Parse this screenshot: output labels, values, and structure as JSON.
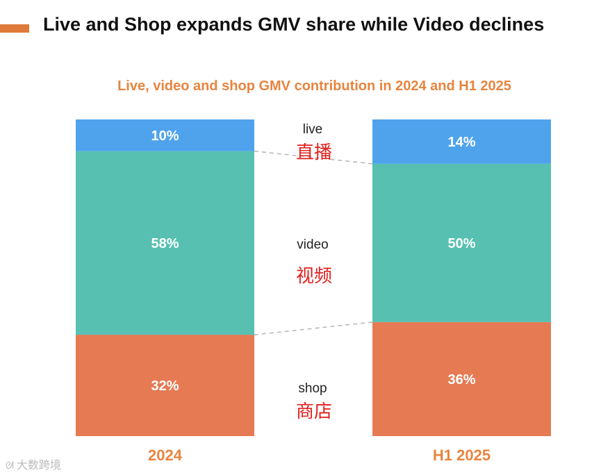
{
  "header": {
    "headline": "Live and Shop expands GMV share while Video declines",
    "accent_color": "#e07a3a"
  },
  "chart_data": {
    "type": "bar",
    "stacked": true,
    "normalized": true,
    "title": "Live, video and shop GMV contribution in 2024 and H1 2025",
    "categories": [
      "2024",
      "H1 2025"
    ],
    "series": [
      {
        "name": "shop",
        "name_zh": "商店",
        "color": "#e57a53",
        "values": [
          32,
          36
        ],
        "labels": [
          "32%",
          "36%"
        ]
      },
      {
        "name": "video",
        "name_zh": "视频",
        "color": "#57c0b1",
        "values": [
          58,
          50
        ],
        "labels": [
          "58%",
          "50%"
        ]
      },
      {
        "name": "live",
        "name_zh": "直播",
        "color": "#4fa3ec",
        "values": [
          10,
          14
        ],
        "labels": [
          "10%",
          "14%"
        ]
      }
    ],
    "ylim": [
      0,
      100
    ],
    "unit": "%"
  },
  "watermark": {
    "text": "大数跨境"
  }
}
